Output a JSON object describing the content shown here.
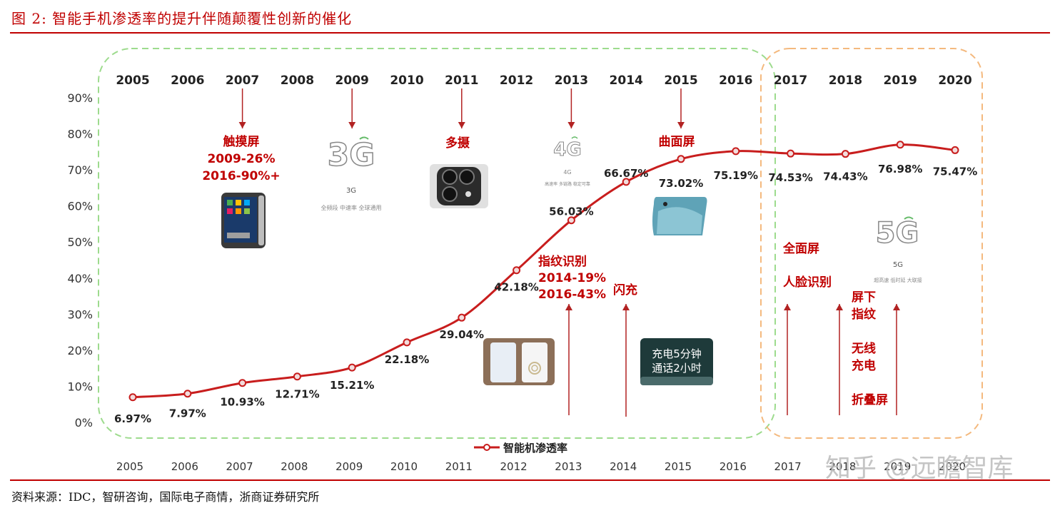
{
  "figure": {
    "title": "图 2:    智能手机渗透率的提升伴随颠覆性创新的催化",
    "source": "资料来源：IDC，智研咨询，国际电子商情，浙商证券研究所",
    "watermark": "知乎 @远瞻智库"
  },
  "colors": {
    "accent": "#c00000",
    "line": "#c81d1d",
    "green_zone": "#9ddb8d",
    "orange_zone": "#f4b97e"
  },
  "icons": {
    "phone_iphone": "smartphone-icon",
    "camera": "triple-camera-icon",
    "fingerprint": "fingerprint-phone-icon",
    "curved": "curved-screen-phone-icon",
    "fast_charge": "fast-charge-card-icon"
  },
  "badges": {
    "g3": {
      "logo": "3G",
      "label": "3G",
      "desc": "全频段 中速率 全球通用"
    },
    "g4": {
      "logo": "4G",
      "label": "4G",
      "desc": "高速率 多链路 稳定可靠"
    },
    "g5": {
      "logo": "5G",
      "label": "5G",
      "desc": "超高速 低时延 大联接"
    }
  },
  "fast_charge_text": [
    "充电5分钟",
    "通话2小时"
  ],
  "annotations": [
    {
      "year": "2007",
      "lines": [
        "触摸屏",
        "2009-26%",
        "2016-90%+"
      ]
    },
    {
      "year": "2011",
      "lines": [
        "多摄"
      ]
    },
    {
      "year": "2013",
      "lines": [
        "指纹识别",
        "2014-19%",
        "2016-43%"
      ]
    },
    {
      "year": "2014",
      "lines": [
        "闪充"
      ]
    },
    {
      "year": "2015",
      "lines": [
        "曲面屏"
      ]
    },
    {
      "year": "2017",
      "lines": [
        "全面屏",
        "人脸识别"
      ]
    },
    {
      "year": "2019",
      "lines": [
        "屏下",
        "指纹",
        "无线",
        "充电",
        "折叠屏"
      ]
    }
  ],
  "chart_data": {
    "type": "line",
    "title": "智能手机渗透率的提升伴随颠覆性创新的催化",
    "x": [
      "2005",
      "2006",
      "2007",
      "2008",
      "2009",
      "2010",
      "2011",
      "2012",
      "2013",
      "2014",
      "2015",
      "2016",
      "2017",
      "2018",
      "2019",
      "2020"
    ],
    "series": [
      {
        "name": "智能机渗透率",
        "values": [
          6.97,
          7.97,
          10.93,
          12.71,
          15.21,
          22.18,
          29.04,
          42.18,
          56.03,
          66.67,
          73.02,
          75.19,
          74.53,
          74.43,
          76.98,
          75.47
        ],
        "labels": [
          "6.97%",
          "7.97%",
          "10.93%",
          "12.71%",
          "15.21%",
          "22.18%",
          "29.04%",
          "42.18%",
          "56.03%",
          "66.67%",
          "73.02%",
          "75.19%",
          "74.53%",
          "74.43%",
          "76.98%",
          "75.47%"
        ]
      }
    ],
    "yticks": [
      "0%",
      "10%",
      "20%",
      "30%",
      "40%",
      "50%",
      "60%",
      "70%",
      "80%",
      "90%"
    ],
    "ylim": [
      0,
      90
    ],
    "legend": "bottom-center",
    "grid": false
  }
}
